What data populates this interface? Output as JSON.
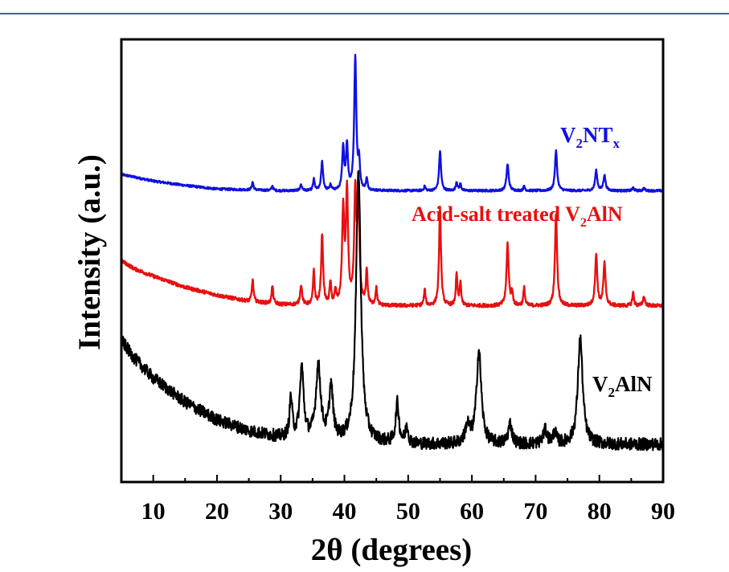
{
  "chart_data": {
    "type": "line",
    "title": "",
    "xlabel": "2θ (degrees)",
    "ylabel": "Intensity (a.u.)",
    "xlim": [
      5,
      90
    ],
    "ylim": [
      0,
      100
    ],
    "x_ticks": [
      "10",
      "20",
      "30",
      "40",
      "50",
      "60",
      "70",
      "80",
      "90"
    ],
    "y_ticks": [],
    "grid": false,
    "series": [
      {
        "name": "V₂NTₓ",
        "label_main": "V",
        "label_parts": [
          {
            "t": "V",
            "sub": false
          },
          {
            "t": "2",
            "sub": true
          },
          {
            "t": "NT",
            "sub": false
          },
          {
            "t": "x",
            "sub": true
          }
        ],
        "color": "#1010e0",
        "noise": 0.25,
        "start_x": 5,
        "baseline": [
          [
            5,
            69.5
          ],
          [
            10,
            68
          ],
          [
            15,
            67
          ],
          [
            20,
            66.2
          ],
          [
            30,
            65.8
          ],
          [
            90,
            65.8
          ]
        ],
        "peaks": [
          [
            25.6,
            1.8,
            0.15
          ],
          [
            28.7,
            1.0,
            0.15
          ],
          [
            33.2,
            1.3,
            0.18
          ],
          [
            35.2,
            2.5,
            0.15
          ],
          [
            36.5,
            6.5,
            0.18
          ],
          [
            37.8,
            1.2,
            0.15
          ],
          [
            39.8,
            9.5,
            0.18
          ],
          [
            40.4,
            10.0,
            0.18
          ],
          [
            41.7,
            30.0,
            0.2
          ],
          [
            42.3,
            6.0,
            0.15
          ],
          [
            43.5,
            2.5,
            0.15
          ],
          [
            52.6,
            1.0,
            0.15
          ],
          [
            55.0,
            9.0,
            0.18
          ],
          [
            57.6,
            2.0,
            0.15
          ],
          [
            58.2,
            1.5,
            0.15
          ],
          [
            65.6,
            6.0,
            0.2
          ],
          [
            68.2,
            1.0,
            0.15
          ],
          [
            73.2,
            9.0,
            0.2
          ],
          [
            79.5,
            4.5,
            0.2
          ],
          [
            80.8,
            3.5,
            0.2
          ],
          [
            85.3,
            0.7,
            0.15
          ],
          [
            87.0,
            0.6,
            0.15
          ]
        ]
      },
      {
        "name": "Acid-salt treated V₂AlN",
        "label_main": "Acid-salt treated V",
        "label_parts": [
          {
            "t": "Acid-salt treated V",
            "sub": false
          },
          {
            "t": "2",
            "sub": true
          },
          {
            "t": "AlN",
            "sub": false
          }
        ],
        "color": "#e81010",
        "noise": 0.4,
        "start_x": 5,
        "baseline": [
          [
            5,
            50
          ],
          [
            7,
            48.2
          ],
          [
            10,
            46.5
          ],
          [
            15,
            44
          ],
          [
            20,
            42.2
          ],
          [
            25,
            40.8
          ],
          [
            30,
            40.1
          ],
          [
            40,
            39.8
          ],
          [
            90,
            39.8
          ]
        ],
        "peaks": [
          [
            25.6,
            5.0,
            0.15
          ],
          [
            28.7,
            4.0,
            0.15
          ],
          [
            33.2,
            4.5,
            0.18
          ],
          [
            35.2,
            7.5,
            0.15
          ],
          [
            36.5,
            16.0,
            0.18
          ],
          [
            37.8,
            5.0,
            0.15
          ],
          [
            38.6,
            3.0,
            0.15
          ],
          [
            39.8,
            21.0,
            0.2
          ],
          [
            40.4,
            25.0,
            0.2
          ],
          [
            41.7,
            25.0,
            0.2
          ],
          [
            42.2,
            24.0,
            0.18
          ],
          [
            43.5,
            8.0,
            0.15
          ],
          [
            45.0,
            4.0,
            0.15
          ],
          [
            52.6,
            3.5,
            0.15
          ],
          [
            55.0,
            22.0,
            0.18
          ],
          [
            57.6,
            7.0,
            0.15
          ],
          [
            58.2,
            5.0,
            0.15
          ],
          [
            65.6,
            14.0,
            0.2
          ],
          [
            66.3,
            3.0,
            0.15
          ],
          [
            68.2,
            4.0,
            0.15
          ],
          [
            73.2,
            21.0,
            0.2
          ],
          [
            79.5,
            11.5,
            0.2
          ],
          [
            80.8,
            9.5,
            0.2
          ],
          [
            85.3,
            3.0,
            0.15
          ],
          [
            87.0,
            2.0,
            0.2
          ]
        ]
      },
      {
        "name": "V₂AlN",
        "label_main": "V",
        "label_parts": [
          {
            "t": "V",
            "sub": false
          },
          {
            "t": "2",
            "sub": true
          },
          {
            "t": "AlN",
            "sub": false
          }
        ],
        "color": "#000000",
        "noise": 1.4,
        "start_x": 5,
        "baseline": [
          [
            5,
            32
          ],
          [
            7,
            28
          ],
          [
            10,
            23.5
          ],
          [
            15,
            18
          ],
          [
            20,
            14
          ],
          [
            25,
            11.5
          ],
          [
            30,
            10
          ],
          [
            40,
            9
          ],
          [
            50,
            8.5
          ],
          [
            60,
            8.5
          ],
          [
            90,
            8.5
          ]
        ],
        "peaks": [
          [
            31.6,
            9.0,
            0.25
          ],
          [
            33.3,
            16.0,
            0.35
          ],
          [
            35.9,
            16.5,
            0.45
          ],
          [
            37.9,
            12.0,
            0.35
          ],
          [
            42.2,
            61.0,
            0.45
          ],
          [
            48.3,
            9.0,
            0.3
          ],
          [
            49.8,
            4.0,
            0.25
          ],
          [
            59.3,
            4.0,
            0.4
          ],
          [
            61.1,
            21.0,
            0.45
          ],
          [
            66.0,
            4.5,
            0.35
          ],
          [
            71.5,
            3.0,
            0.4
          ],
          [
            73.0,
            2.5,
            0.3
          ],
          [
            77.0,
            24.0,
            0.45
          ]
        ]
      }
    ]
  }
}
